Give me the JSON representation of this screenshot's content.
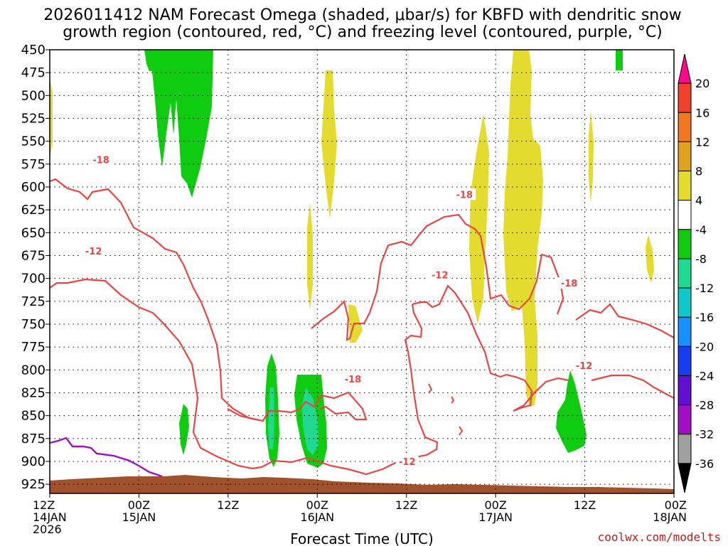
{
  "chart_data": {
    "type": "heatmap",
    "title_line1": "2026011412 NAM Forecast Omega (shaded, μbar/s) for KBFD with dendritic snow",
    "title_line2": "growth region (contoured, red, °C) and freezing level (contoured, purple, °C)",
    "xlabel": "Forecast Time (UTC)",
    "credit": "coolwx.com/modelts",
    "x_range_hours": [
      0,
      84
    ],
    "y_range_mb": [
      450,
      935
    ],
    "y_ticks": [
      450,
      475,
      500,
      525,
      550,
      575,
      600,
      625,
      650,
      675,
      700,
      725,
      750,
      775,
      800,
      825,
      850,
      875,
      900,
      925
    ],
    "x_ticks": [
      {
        "h": 0,
        "l1": "12Z",
        "l2": "14JAN",
        "l3": "2026"
      },
      {
        "h": 12,
        "l1": "00Z",
        "l2": "15JAN",
        "l3": ""
      },
      {
        "h": 24,
        "l1": "12Z",
        "l2": "",
        "l3": ""
      },
      {
        "h": 36,
        "l1": "00Z",
        "l2": "16JAN",
        "l3": ""
      },
      {
        "h": 48,
        "l1": "12Z",
        "l2": "",
        "l3": ""
      },
      {
        "h": 60,
        "l1": "00Z",
        "l2": "17JAN",
        "l3": ""
      },
      {
        "h": 72,
        "l1": "12Z",
        "l2": "",
        "l3": ""
      },
      {
        "h": 84,
        "l1": "00Z",
        "l2": "18JAN",
        "l3": ""
      }
    ],
    "colorbar": [
      {
        "label": "",
        "color": "#ff0a8c"
      },
      {
        "label": "20",
        "color": "#f04030"
      },
      {
        "label": "16",
        "color": "#f07820"
      },
      {
        "label": "12",
        "color": "#e0a020"
      },
      {
        "label": "8",
        "color": "#e3dc2e"
      },
      {
        "label": "4",
        "color": "#ffffff"
      },
      {
        "label": "-4",
        "color": "#10cc10"
      },
      {
        "label": "-8",
        "color": "#20d890"
      },
      {
        "label": "-12",
        "color": "#10c8c8"
      },
      {
        "label": "-16",
        "color": "#1890ff"
      },
      {
        "label": "-20",
        "color": "#1a3cf0"
      },
      {
        "label": "-24",
        "color": "#6010d0"
      },
      {
        "label": "-28",
        "color": "#a010c0"
      },
      {
        "label": "-32",
        "color": "#a0a0a0"
      },
      {
        "label": "-36",
        "color": "#000000"
      }
    ],
    "contour_labels": [
      {
        "text": "-18",
        "h": 6.9,
        "p": 570
      },
      {
        "text": "-12",
        "h": 5.9,
        "p": 670
      },
      {
        "text": "-18",
        "h": 55.8,
        "p": 608
      },
      {
        "text": "-12",
        "h": 52.5,
        "p": 696
      },
      {
        "text": "-18",
        "h": 69.9,
        "p": 705
      },
      {
        "text": "-18",
        "h": 40.8,
        "p": 810
      },
      {
        "text": "-12",
        "h": 71.9,
        "p": 795
      },
      {
        "text": "-12",
        "h": 48.1,
        "p": 900
      }
    ]
  }
}
